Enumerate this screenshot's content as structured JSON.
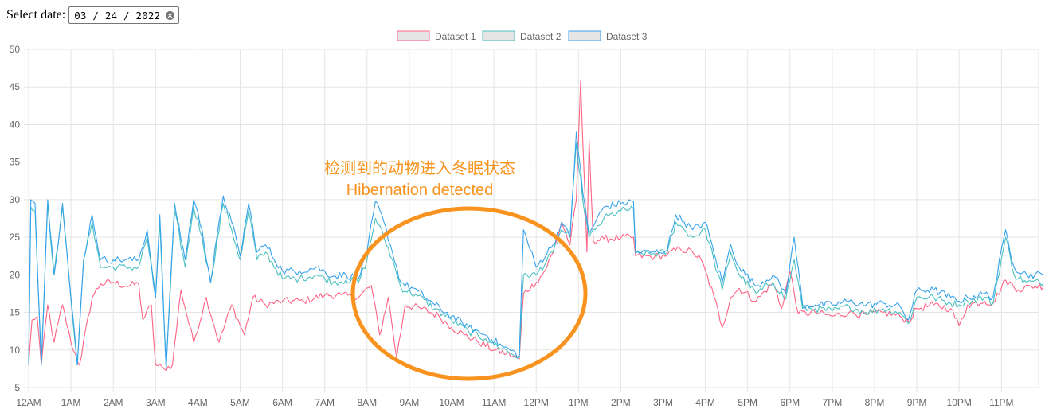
{
  "date_picker": {
    "label": "Select date:",
    "value": "03 / 24 / 2022"
  },
  "annotation": {
    "line1": "检测到的动物进入冬眠状态",
    "line2": "Hibernation detected",
    "color": "#f7931e"
  },
  "chart_data": {
    "type": "line",
    "ylim": [
      5,
      50
    ],
    "y_ticks": [
      5,
      10,
      15,
      20,
      25,
      30,
      35,
      40,
      45,
      50
    ],
    "x_range": [
      0,
      24
    ],
    "x_ticks": [
      "12AM",
      "1AM",
      "2AM",
      "3AM",
      "4AM",
      "5AM",
      "6AM",
      "7AM",
      "8AM",
      "9AM",
      "10AM",
      "11AM",
      "12PM",
      "1PM",
      "2PM",
      "3PM",
      "4PM",
      "5PM",
      "6PM",
      "7PM",
      "8PM",
      "9PM",
      "10PM",
      "11PM"
    ],
    "grid": true,
    "legend_position": "top",
    "series": [
      {
        "name": "Dataset 1",
        "color": "#ff6384",
        "fill": "#e5e5e5"
      },
      {
        "name": "Dataset 2",
        "color": "#4bc0c0",
        "fill": "#e5e5e5"
      },
      {
        "name": "Dataset 3",
        "color": "#36a2eb",
        "fill": "#e5e5e5"
      }
    ],
    "anchors": {
      "Dataset 1": [
        [
          0,
          8
        ],
        [
          0.08,
          14
        ],
        [
          0.2,
          14.5
        ],
        [
          0.3,
          8
        ],
        [
          0.45,
          16
        ],
        [
          0.6,
          11
        ],
        [
          0.8,
          16
        ],
        [
          1.0,
          11
        ],
        [
          1.2,
          8
        ],
        [
          1.5,
          17
        ],
        [
          1.7,
          18.8
        ],
        [
          2.0,
          19
        ],
        [
          2.3,
          18.5
        ],
        [
          2.6,
          18.8
        ],
        [
          2.7,
          14
        ],
        [
          2.9,
          16
        ],
        [
          3.0,
          8
        ],
        [
          3.2,
          7.5
        ],
        [
          3.4,
          8
        ],
        [
          3.6,
          18
        ],
        [
          3.9,
          11
        ],
        [
          4.2,
          17
        ],
        [
          4.5,
          11
        ],
        [
          4.8,
          16
        ],
        [
          5.1,
          12
        ],
        [
          5.3,
          17
        ],
        [
          5.6,
          16
        ],
        [
          6.0,
          16.5
        ],
        [
          6.5,
          16.5
        ],
        [
          7.0,
          17.3
        ],
        [
          7.4,
          17.3
        ],
        [
          7.8,
          17
        ],
        [
          8.1,
          18.6
        ],
        [
          8.3,
          12
        ],
        [
          8.5,
          17
        ],
        [
          8.7,
          9
        ],
        [
          8.9,
          16
        ],
        [
          9.3,
          15.5
        ],
        [
          9.7,
          14.5
        ],
        [
          10.0,
          13
        ],
        [
          10.3,
          12
        ],
        [
          10.6,
          11.2
        ],
        [
          11.0,
          10
        ],
        [
          11.3,
          9.5
        ],
        [
          11.6,
          8.8
        ],
        [
          11.7,
          17.5
        ],
        [
          12.0,
          19
        ],
        [
          12.2,
          20.5
        ],
        [
          12.4,
          23
        ],
        [
          12.6,
          27
        ],
        [
          12.8,
          24
        ],
        [
          12.95,
          30
        ],
        [
          13.05,
          45.8
        ],
        [
          13.2,
          23
        ],
        [
          13.25,
          38
        ],
        [
          13.35,
          24.5
        ],
        [
          13.6,
          24.8
        ],
        [
          14.0,
          24.9
        ],
        [
          14.3,
          25
        ],
        [
          14.35,
          22.5
        ],
        [
          14.8,
          22.4
        ],
        [
          15.1,
          22.7
        ],
        [
          15.4,
          23.5
        ],
        [
          15.7,
          23
        ],
        [
          15.9,
          22
        ],
        [
          16.2,
          17.2
        ],
        [
          16.4,
          13
        ],
        [
          16.6,
          17
        ],
        [
          16.8,
          18.2
        ],
        [
          17.2,
          16.5
        ],
        [
          17.6,
          19
        ],
        [
          17.8,
          15.5
        ],
        [
          18.0,
          20.5
        ],
        [
          18.2,
          14.8
        ],
        [
          18.6,
          15
        ],
        [
          19.0,
          14.5
        ],
        [
          19.4,
          15
        ],
        [
          19.8,
          14.7
        ],
        [
          20.2,
          15
        ],
        [
          20.6,
          14.5
        ],
        [
          20.8,
          13.8
        ],
        [
          21.0,
          15.5
        ],
        [
          21.4,
          16
        ],
        [
          21.8,
          15.5
        ],
        [
          22.0,
          13.2
        ],
        [
          22.2,
          16
        ],
        [
          22.6,
          16.5
        ],
        [
          22.8,
          16.2
        ],
        [
          23.1,
          19.3
        ],
        [
          23.4,
          18
        ],
        [
          23.7,
          18.5
        ],
        [
          24.0,
          18.5
        ]
      ],
      "Dataset 2": [
        [
          0,
          8
        ],
        [
          0.05,
          29
        ],
        [
          0.15,
          28.5
        ],
        [
          0.3,
          8.5
        ],
        [
          0.45,
          29.5
        ],
        [
          0.6,
          20
        ],
        [
          0.8,
          29
        ],
        [
          0.95,
          20
        ],
        [
          1.15,
          8
        ],
        [
          1.3,
          22
        ],
        [
          1.5,
          27
        ],
        [
          1.7,
          21
        ],
        [
          2.0,
          21
        ],
        [
          2.3,
          21
        ],
        [
          2.6,
          21
        ],
        [
          2.8,
          25
        ],
        [
          3.0,
          17
        ],
        [
          3.1,
          27
        ],
        [
          3.25,
          7.5
        ],
        [
          3.45,
          28.5
        ],
        [
          3.7,
          21
        ],
        [
          3.9,
          29
        ],
        [
          4.1,
          25
        ],
        [
          4.3,
          19
        ],
        [
          4.6,
          29.5
        ],
        [
          4.8,
          26
        ],
        [
          5.0,
          22
        ],
        [
          5.2,
          28.5
        ],
        [
          5.4,
          22
        ],
        [
          5.6,
          23
        ],
        [
          6.0,
          19.5
        ],
        [
          6.4,
          19.5
        ],
        [
          6.8,
          20
        ],
        [
          7.2,
          19
        ],
        [
          7.5,
          19.3
        ],
        [
          7.8,
          19
        ],
        [
          8.0,
          22
        ],
        [
          8.2,
          27.5
        ],
        [
          8.4,
          25
        ],
        [
          8.6,
          22
        ],
        [
          8.8,
          18.3
        ],
        [
          9.2,
          17.2
        ],
        [
          9.6,
          15.5
        ],
        [
          10.0,
          14
        ],
        [
          10.4,
          12.5
        ],
        [
          10.8,
          11.5
        ],
        [
          11.2,
          10.2
        ],
        [
          11.6,
          9
        ],
        [
          11.7,
          20
        ],
        [
          12.0,
          20
        ],
        [
          12.4,
          23
        ],
        [
          12.6,
          26
        ],
        [
          12.8,
          25
        ],
        [
          12.95,
          37.5
        ],
        [
          13.1,
          30
        ],
        [
          13.25,
          25
        ],
        [
          13.4,
          26
        ],
        [
          13.6,
          27.5
        ],
        [
          14.0,
          28.5
        ],
        [
          14.3,
          28.8
        ],
        [
          14.35,
          22.8
        ],
        [
          14.8,
          22.8
        ],
        [
          15.1,
          23
        ],
        [
          15.3,
          27
        ],
        [
          15.5,
          26
        ],
        [
          15.7,
          25
        ],
        [
          16.0,
          26
        ],
        [
          16.2,
          22
        ],
        [
          16.4,
          18
        ],
        [
          16.6,
          23
        ],
        [
          16.8,
          20
        ],
        [
          17.2,
          17.5
        ],
        [
          17.6,
          19
        ],
        [
          17.9,
          16.8
        ],
        [
          18.1,
          22
        ],
        [
          18.3,
          15.5
        ],
        [
          18.6,
          15.5
        ],
        [
          19.0,
          15.2
        ],
        [
          19.4,
          15.8
        ],
        [
          19.8,
          15
        ],
        [
          20.2,
          15.5
        ],
        [
          20.6,
          15
        ],
        [
          20.8,
          13.5
        ],
        [
          21.0,
          17
        ],
        [
          21.4,
          17
        ],
        [
          21.8,
          16.2
        ],
        [
          22.0,
          16
        ],
        [
          22.2,
          16.5
        ],
        [
          22.6,
          17
        ],
        [
          22.8,
          16.2
        ],
        [
          23.1,
          25
        ],
        [
          23.3,
          20
        ],
        [
          23.6,
          19
        ],
        [
          24.0,
          19
        ]
      ],
      "Dataset 3": [
        [
          0,
          8
        ],
        [
          0.05,
          30
        ],
        [
          0.15,
          29.5
        ],
        [
          0.3,
          8
        ],
        [
          0.45,
          30
        ],
        [
          0.6,
          20
        ],
        [
          0.8,
          29.5
        ],
        [
          0.95,
          20
        ],
        [
          1.15,
          8
        ],
        [
          1.3,
          22
        ],
        [
          1.5,
          28
        ],
        [
          1.7,
          22
        ],
        [
          2.0,
          22
        ],
        [
          2.3,
          22
        ],
        [
          2.6,
          22
        ],
        [
          2.8,
          26
        ],
        [
          3.0,
          17
        ],
        [
          3.1,
          28
        ],
        [
          3.25,
          7.5
        ],
        [
          3.45,
          29.5
        ],
        [
          3.7,
          22
        ],
        [
          3.9,
          30
        ],
        [
          4.1,
          26
        ],
        [
          4.3,
          19
        ],
        [
          4.6,
          30.5
        ],
        [
          4.8,
          27
        ],
        [
          5.0,
          22.5
        ],
        [
          5.2,
          29.5
        ],
        [
          5.4,
          23
        ],
        [
          5.6,
          24
        ],
        [
          6.0,
          20.5
        ],
        [
          6.4,
          20.5
        ],
        [
          6.8,
          21
        ],
        [
          7.2,
          19.8
        ],
        [
          7.5,
          20
        ],
        [
          7.8,
          19.5
        ],
        [
          8.0,
          23
        ],
        [
          8.2,
          29.8
        ],
        [
          8.4,
          27
        ],
        [
          8.6,
          23
        ],
        [
          8.8,
          19
        ],
        [
          9.2,
          17.8
        ],
        [
          9.6,
          16
        ],
        [
          10.0,
          14.5
        ],
        [
          10.4,
          13
        ],
        [
          10.8,
          12
        ],
        [
          11.2,
          10.5
        ],
        [
          11.6,
          9.3
        ],
        [
          11.7,
          26
        ],
        [
          12.0,
          21
        ],
        [
          12.4,
          24
        ],
        [
          12.6,
          27
        ],
        [
          12.8,
          25
        ],
        [
          12.95,
          39
        ],
        [
          13.1,
          31
        ],
        [
          13.25,
          25.5
        ],
        [
          13.4,
          27
        ],
        [
          13.6,
          29
        ],
        [
          14.0,
          29.5
        ],
        [
          14.3,
          29.8
        ],
        [
          14.35,
          23
        ],
        [
          14.8,
          23
        ],
        [
          15.1,
          23.3
        ],
        [
          15.3,
          28
        ],
        [
          15.5,
          27
        ],
        [
          15.7,
          26
        ],
        [
          16.0,
          27
        ],
        [
          16.2,
          23
        ],
        [
          16.4,
          19
        ],
        [
          16.6,
          24
        ],
        [
          16.8,
          21
        ],
        [
          17.2,
          18.5
        ],
        [
          17.6,
          20
        ],
        [
          17.9,
          17.5
        ],
        [
          18.1,
          25
        ],
        [
          18.3,
          16
        ],
        [
          18.6,
          16
        ],
        [
          19.0,
          16
        ],
        [
          19.4,
          16.5
        ],
        [
          19.8,
          16
        ],
        [
          20.2,
          16.2
        ],
        [
          20.6,
          15.8
        ],
        [
          20.8,
          14
        ],
        [
          21.0,
          18
        ],
        [
          21.4,
          18
        ],
        [
          21.8,
          17
        ],
        [
          22.0,
          16.5
        ],
        [
          22.2,
          17
        ],
        [
          22.6,
          17.5
        ],
        [
          22.8,
          17
        ],
        [
          23.1,
          26
        ],
        [
          23.3,
          21
        ],
        [
          23.6,
          20
        ],
        [
          24.0,
          20
        ]
      ]
    }
  }
}
